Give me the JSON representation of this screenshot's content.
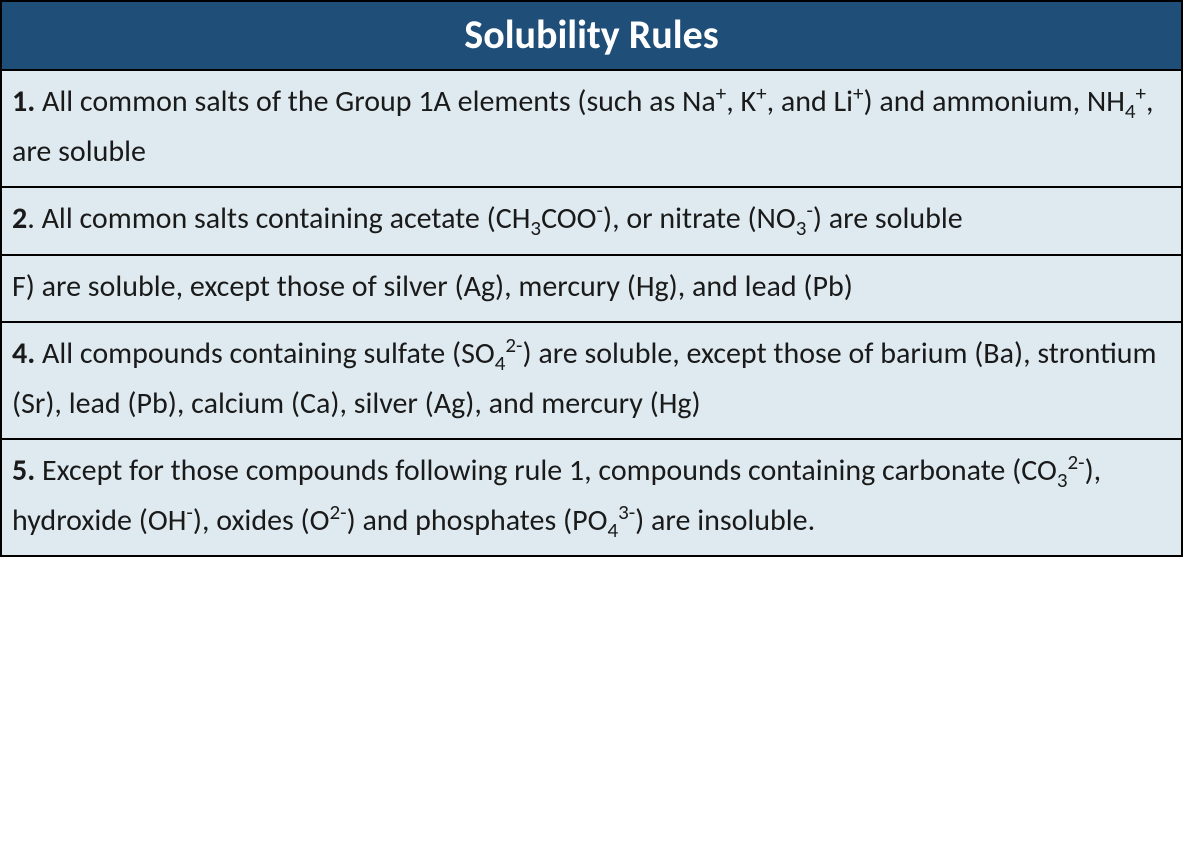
{
  "table": {
    "title": "Solubility Rules",
    "header_bg": "#1f4e79",
    "header_text_color": "#ffffff",
    "header_fontsize": 40,
    "row_bg": "#deeaf0",
    "row_text_color": "#1a1a1a",
    "row_fontsize": 30,
    "border_color": "#000000",
    "rules": [
      {
        "num": "1.",
        "html": " All common salts of the Group 1A elements (such as Na<sup>+</sup>, K<sup>+</sup>, and Li<sup>+</sup>)  and ammonium, NH<sub>4</sub><sup>+</sup>, are soluble"
      },
      {
        "num": "2",
        "html": ". All common salts containing acetate (CH<sub>3</sub>COO<sup>-</sup>), or nitrate (NO<sub>3</sub><sup>-</sup>) are soluble"
      },
      {
        "num": "",
        "html": "F) are soluble, except those of silver (Ag), mercury (Hg), and lead (Pb)"
      },
      {
        "num": "4.",
        "html": " All compounds containing sulfate (SO<sub>4</sub><sup>2-</sup>) are soluble, except those of barium (Ba), strontium (Sr), lead (Pb), calcium (Ca), silver (Ag), and mercury (Hg)"
      },
      {
        "num": "5.",
        "html": " Except for those compounds following rule 1, compounds containing carbonate (CO<sub>3</sub><sup>2-</sup>), hydroxide (OH<sup>-</sup>), oxides (O<sup>2-</sup>) and phosphates (PO<sub>4</sub><sup>3-</sup>) are insoluble."
      }
    ]
  }
}
